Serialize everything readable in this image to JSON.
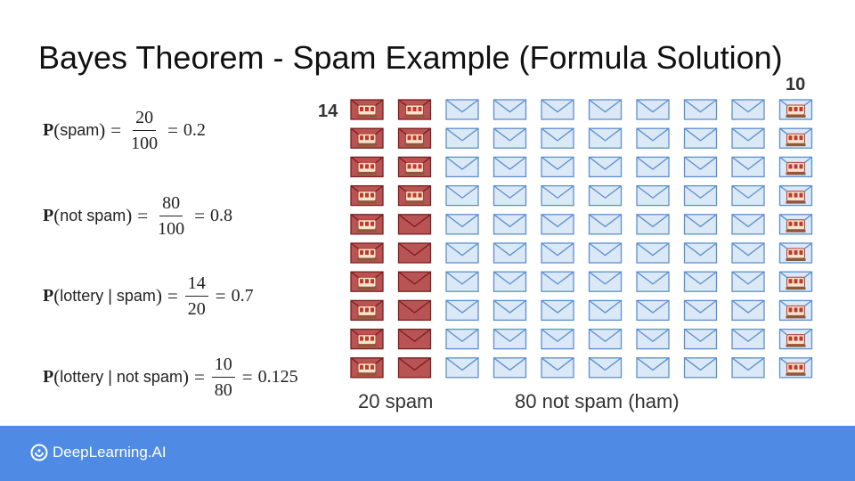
{
  "title": "Bayes Theorem - Spam Example (Formula Solution)",
  "formulas": [
    {
      "p": "P",
      "open": "(",
      "arg": "spam",
      "close": ")",
      "eq": "=",
      "num": "20",
      "den": "100",
      "eq2": "=",
      "result": "0.2"
    },
    {
      "p": "P",
      "open": "(",
      "arg": "not spam",
      "close": ")",
      "eq": "=",
      "num": "80",
      "den": "100",
      "eq2": "=",
      "result": "0.8"
    },
    {
      "p": "P",
      "open": "(",
      "arg": "lottery | spam",
      "close": ")",
      "eq": "=",
      "num": "14",
      "den": "20",
      "eq2": "=",
      "result": "0.7"
    },
    {
      "p": "P",
      "open": "(",
      "arg": "lottery | not spam",
      "close": ")",
      "eq": "=",
      "num": "10",
      "den": "80",
      "eq2": "=",
      "result": "0.125"
    }
  ],
  "grid": {
    "rows": 10,
    "columns": 10,
    "spam_count": 20,
    "ham_count": 80,
    "spam_with_lottery": 14,
    "ham_with_lottery": 10,
    "spam_lottery_label": "14",
    "ham_lottery_label": "10",
    "spam_label": "20 spam",
    "ham_label": "80 not spam (ham)",
    "colors": {
      "spam_fill": "#b85454",
      "spam_stroke": "#7a1f1f",
      "ham_fill": "#dbe8f6",
      "ham_stroke": "#5b8fd0",
      "lottery_icon": "#c0392b"
    }
  },
  "footer": {
    "logo_text": "DeepLearning.AI",
    "color": "#4f8be4"
  }
}
